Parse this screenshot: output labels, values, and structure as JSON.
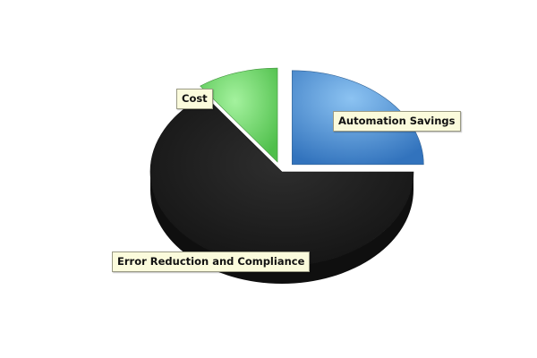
{
  "chart_data": {
    "type": "pie",
    "style": "3d-exploded",
    "slices": [
      {
        "label": "Automation Savings",
        "value": 25,
        "color": "#4a8fd6",
        "exploded": true
      },
      {
        "label": "Error Reduction and Compliance",
        "value": 65,
        "color": "#1c1c1c",
        "exploded": false
      },
      {
        "label": "Cost",
        "value": 10,
        "color": "#5fd45a",
        "exploded": true
      }
    ],
    "legend": "none"
  }
}
